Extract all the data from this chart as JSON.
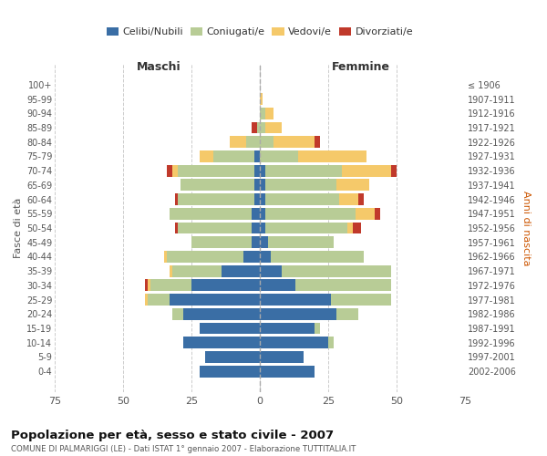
{
  "age_groups": [
    "0-4",
    "5-9",
    "10-14",
    "15-19",
    "20-24",
    "25-29",
    "30-34",
    "35-39",
    "40-44",
    "45-49",
    "50-54",
    "55-59",
    "60-64",
    "65-69",
    "70-74",
    "75-79",
    "80-84",
    "85-89",
    "90-94",
    "95-99",
    "100+"
  ],
  "birth_years": [
    "2002-2006",
    "1997-2001",
    "1992-1996",
    "1987-1991",
    "1982-1986",
    "1977-1981",
    "1972-1976",
    "1967-1971",
    "1962-1966",
    "1957-1961",
    "1952-1956",
    "1947-1951",
    "1942-1946",
    "1937-1941",
    "1932-1936",
    "1927-1931",
    "1922-1926",
    "1917-1921",
    "1912-1916",
    "1907-1911",
    "≤ 1906"
  ],
  "males": {
    "celibi": [
      22,
      20,
      28,
      22,
      28,
      33,
      25,
      14,
      6,
      3,
      3,
      3,
      2,
      2,
      2,
      2,
      0,
      0,
      0,
      0,
      0
    ],
    "coniugati": [
      0,
      0,
      0,
      0,
      4,
      8,
      15,
      18,
      28,
      22,
      27,
      30,
      28,
      27,
      28,
      15,
      5,
      1,
      0,
      0,
      0
    ],
    "vedovi": [
      0,
      0,
      0,
      0,
      0,
      1,
      1,
      1,
      1,
      0,
      0,
      0,
      0,
      0,
      2,
      5,
      6,
      0,
      0,
      0,
      0
    ],
    "divorziati": [
      0,
      0,
      0,
      0,
      0,
      0,
      1,
      0,
      0,
      0,
      1,
      0,
      1,
      0,
      2,
      0,
      0,
      2,
      0,
      0,
      0
    ]
  },
  "females": {
    "nubili": [
      20,
      16,
      25,
      20,
      28,
      26,
      13,
      8,
      4,
      3,
      2,
      2,
      2,
      2,
      2,
      0,
      0,
      0,
      0,
      0,
      0
    ],
    "coniugate": [
      0,
      0,
      2,
      2,
      8,
      22,
      35,
      40,
      34,
      24,
      30,
      33,
      27,
      26,
      28,
      14,
      5,
      2,
      2,
      0,
      0
    ],
    "vedove": [
      0,
      0,
      0,
      0,
      0,
      0,
      0,
      0,
      0,
      0,
      2,
      7,
      7,
      12,
      18,
      25,
      15,
      6,
      3,
      1,
      0
    ],
    "divorziate": [
      0,
      0,
      0,
      0,
      0,
      0,
      0,
      0,
      0,
      0,
      3,
      2,
      2,
      0,
      2,
      0,
      2,
      0,
      0,
      0,
      0
    ]
  },
  "colors": {
    "celibi": "#3A6EA5",
    "coniugati": "#B8CC96",
    "vedovi": "#F5C96A",
    "divorziati": "#C0392B"
  },
  "xlim": 75,
  "title": "Popolazione per età, sesso e stato civile - 2007",
  "subtitle": "COMUNE DI PALMARIGGI (LE) - Dati ISTAT 1° gennaio 2007 - Elaborazione TUTTITALIA.IT",
  "ylabel_left": "Fasce di età",
  "ylabel_right": "Anni di nascita",
  "xlabel_left": "Maschi",
  "xlabel_right": "Femmine",
  "background_color": "#ffffff",
  "grid_color": "#cccccc"
}
